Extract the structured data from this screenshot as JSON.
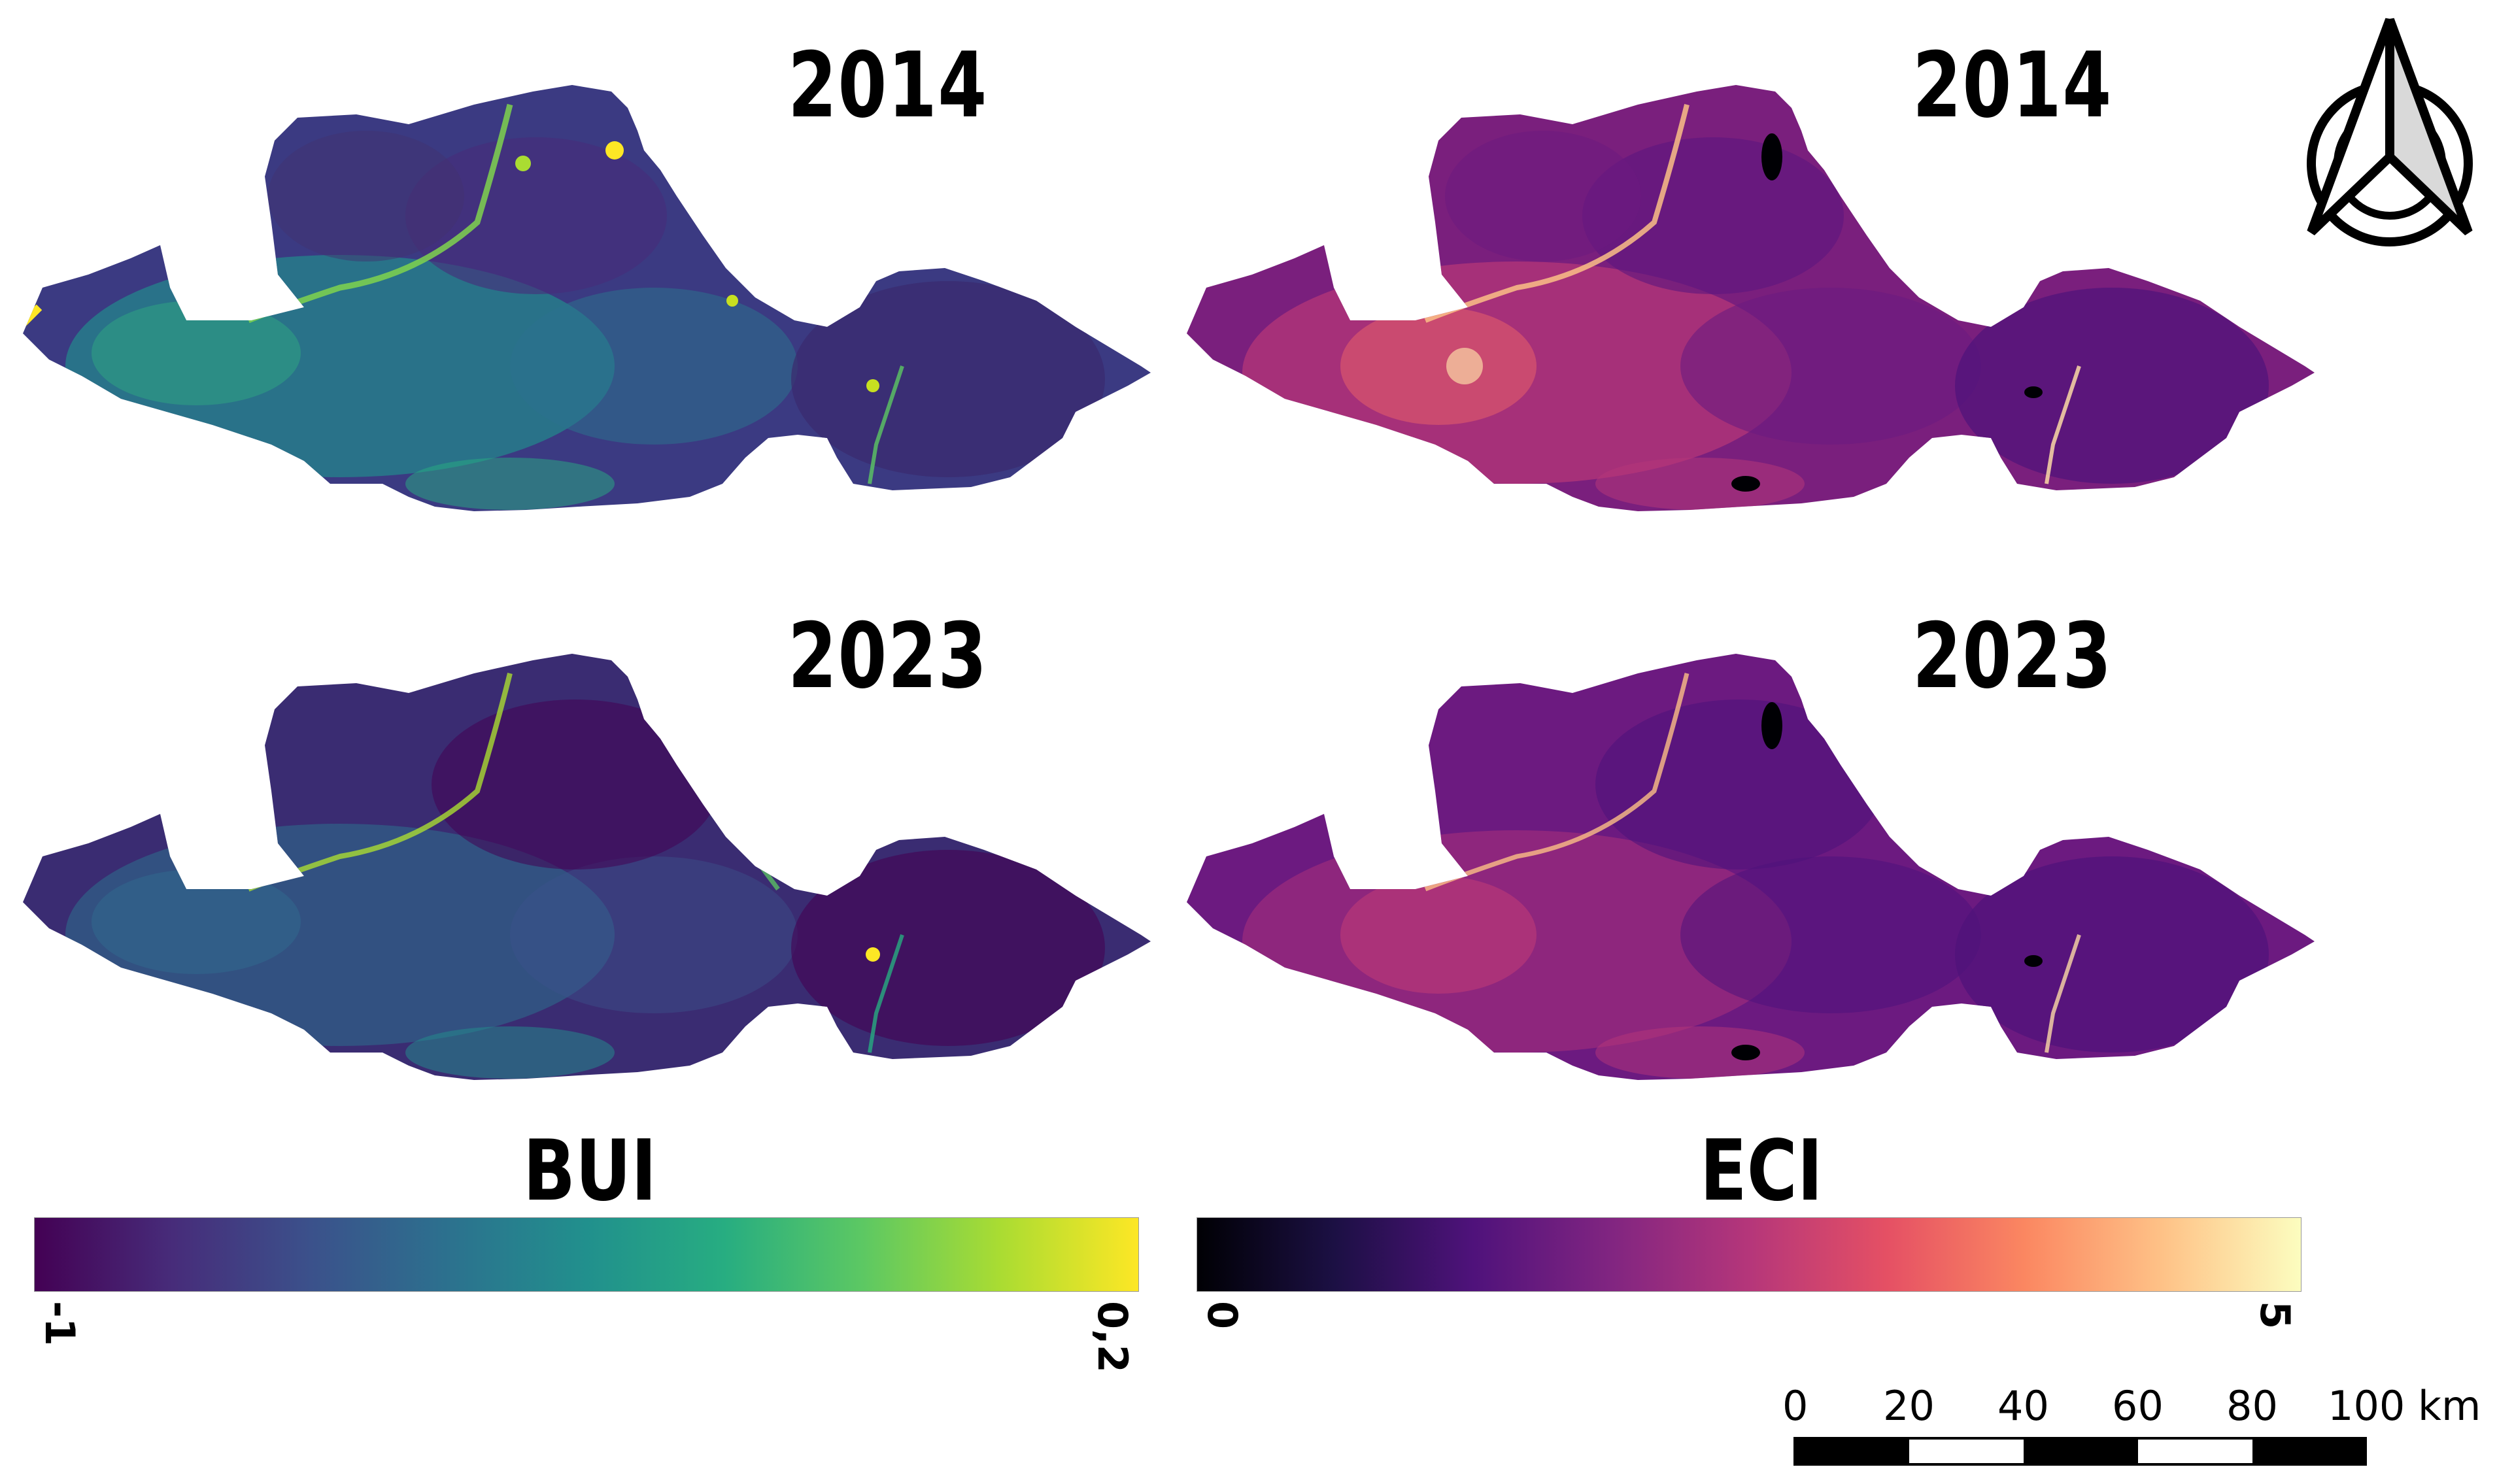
{
  "panels": [
    {
      "index": "BUI",
      "year": "2014"
    },
    {
      "index": "ECI",
      "year": "2014"
    },
    {
      "index": "BUI",
      "year": "2023"
    },
    {
      "index": "ECI",
      "year": "2023"
    }
  ],
  "legends": {
    "bui": {
      "title": "BUI",
      "min_label": "-1",
      "max_label": "0,2",
      "colors": [
        "#440154",
        "#472c7a",
        "#3b518b",
        "#2c718e",
        "#21908d",
        "#27ad81",
        "#5cc863",
        "#aadc32",
        "#fde725"
      ]
    },
    "eci": {
      "title": "ECI",
      "min_label": "0",
      "max_label": "5",
      "colors": [
        "#000004",
        "#1c1044",
        "#4f127b",
        "#812581",
        "#b5367a",
        "#e55064",
        "#fb8761",
        "#fec287",
        "#fcfdbf"
      ]
    }
  },
  "scale_bar": {
    "labels": [
      "0",
      "20",
      "40",
      "60",
      "80",
      "100 km"
    ],
    "unit": "km"
  },
  "north_arrow": {
    "icon": "north-arrow-icon"
  }
}
